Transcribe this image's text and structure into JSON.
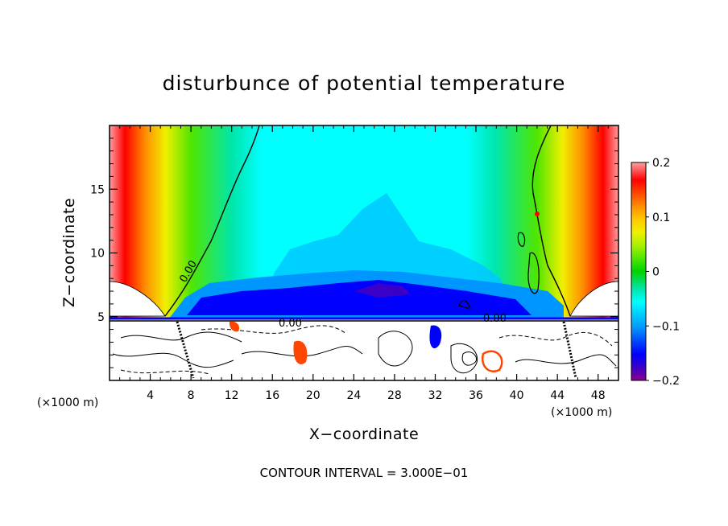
{
  "chart_data": {
    "type": "heatmap",
    "title": "disturbunce of potential temperature",
    "xlabel": "X−coordinate",
    "ylabel": "Z−coordinate",
    "x_unit_label_left": "(×1000 m)",
    "x_unit_label_right": "(×1000 m)",
    "xlim": [
      0,
      50
    ],
    "ylim": [
      0,
      20
    ],
    "xticks": [
      4,
      8,
      12,
      16,
      20,
      24,
      28,
      32,
      36,
      40,
      44,
      48
    ],
    "yticks": [
      5,
      10,
      15
    ],
    "colorbar": {
      "range": [
        -0.2,
        0.2
      ],
      "ticks": [
        {
          "value": 0.2,
          "label": "0.2"
        },
        {
          "value": 0.1,
          "label": "0.1"
        },
        {
          "value": 0.0,
          "label": "0"
        },
        {
          "value": -0.1,
          "label": "−0.1"
        },
        {
          "value": -0.2,
          "label": "−0.2"
        }
      ],
      "colors": [
        "#8e008e",
        "#3a00c8",
        "#0000ff",
        "#0046ff",
        "#0096ff",
        "#00c8ff",
        "#00ffff",
        "#00e6aa",
        "#00d200",
        "#50e600",
        "#aaf000",
        "#f0f000",
        "#ffc800",
        "#ff8c00",
        "#ff4600",
        "#ff0000",
        "#ff5050",
        "#ffa0a0"
      ]
    },
    "contour_labels": [
      "0.00",
      "0.00",
      "0.00"
    ],
    "contour_interval_text": "CONTOUR INTERVAL = 3.000E−01",
    "grid": false,
    "legend": "colorbar right"
  }
}
